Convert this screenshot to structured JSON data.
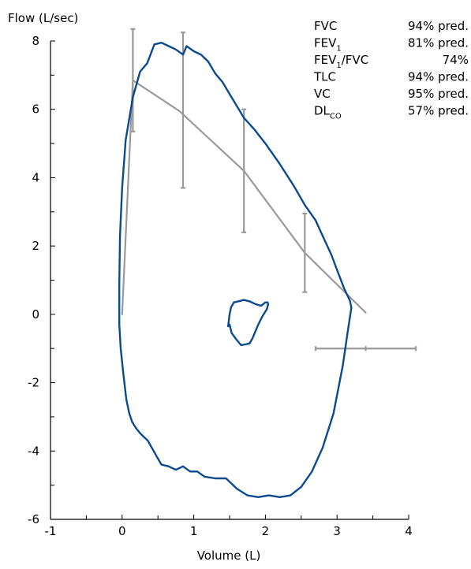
{
  "chart_data": {
    "type": "line",
    "xlabel": "Volume (L)",
    "ylabel": "Flow (L/sec)",
    "xlim": [
      -1,
      4
    ],
    "ylim": [
      -6,
      8
    ],
    "x_ticks": [
      -1,
      0,
      1,
      2,
      3,
      4
    ],
    "y_ticks": [
      -6,
      -4,
      -2,
      0,
      2,
      4,
      6,
      8
    ],
    "x_tick_labels": [
      "-1",
      "0",
      "1",
      "2",
      "3",
      "4"
    ],
    "y_tick_labels": [
      "-6",
      "-4",
      "-2",
      "0",
      "2",
      "4",
      "6",
      "8"
    ],
    "x_minor_step": 0.5,
    "y_minor_step": 1,
    "colors": {
      "patient": "#0b4a8f",
      "predicted": "#9a9a9a",
      "axis": "#000000"
    },
    "series": [
      {
        "role": "patient-loop",
        "x": [
          -0.04,
          -0.02,
          0.02,
          0.06,
          0.1,
          0.14,
          0.2,
          0.26,
          0.31,
          0.36,
          0.4,
          0.44,
          0.48,
          0.55,
          0.65,
          0.75,
          0.85,
          0.95,
          1.05,
          1.15,
          1.3,
          1.45,
          1.6,
          1.75,
          1.9,
          2.05,
          2.2,
          2.35,
          2.5,
          2.65,
          2.8,
          2.95,
          3.08,
          3.15,
          3.2,
          3.18,
          3.1,
          3.0,
          2.92,
          2.82,
          2.7,
          2.55,
          2.4,
          2.2,
          2.0,
          1.85,
          1.7,
          1.6,
          1.5,
          1.4,
          1.3,
          1.2,
          1.1,
          1.0,
          0.9,
          0.85,
          0.75,
          0.65,
          0.55,
          0.45,
          0.35,
          0.25,
          0.15,
          0.05,
          0.0,
          -0.03,
          -0.04,
          -0.04
        ],
        "y": [
          -0.3,
          -1.0,
          -1.8,
          -2.5,
          -2.9,
          -3.15,
          -3.35,
          -3.5,
          -3.6,
          -3.7,
          -3.85,
          -4.0,
          -4.15,
          -4.4,
          -4.45,
          -4.55,
          -4.45,
          -4.6,
          -4.6,
          -4.75,
          -4.8,
          -4.8,
          -5.1,
          -5.3,
          -5.35,
          -5.3,
          -5.35,
          -5.3,
          -5.05,
          -4.6,
          -3.9,
          -2.9,
          -1.5,
          -0.5,
          0.2,
          0.4,
          0.75,
          1.3,
          1.75,
          2.2,
          2.75,
          3.2,
          3.75,
          4.4,
          5.0,
          5.4,
          5.75,
          6.1,
          6.45,
          6.8,
          7.05,
          7.4,
          7.6,
          7.7,
          7.85,
          7.6,
          7.75,
          7.85,
          7.95,
          7.9,
          7.35,
          7.1,
          6.35,
          5.1,
          3.7,
          2.3,
          0.9,
          -0.3
        ]
      },
      {
        "role": "patient-tidal-loop",
        "x": [
          1.48,
          1.5,
          1.53,
          1.6,
          1.66,
          1.72,
          1.78,
          1.82,
          1.86,
          1.9,
          1.96,
          2.02,
          2.04,
          2.03,
          2.0,
          1.94,
          1.86,
          1.78,
          1.7,
          1.62,
          1.56,
          1.52,
          1.5,
          1.48
        ],
        "y": [
          -0.35,
          -0.3,
          -0.55,
          -0.75,
          -0.9,
          -0.88,
          -0.85,
          -0.7,
          -0.5,
          -0.3,
          -0.05,
          0.15,
          0.3,
          0.35,
          0.35,
          0.25,
          0.3,
          0.38,
          0.42,
          0.38,
          0.35,
          0.2,
          0.0,
          -0.35
        ]
      },
      {
        "role": "predicted-curve",
        "x": [
          0.0,
          0.15,
          0.8,
          1.7,
          2.55,
          3.4
        ],
        "y": [
          0.0,
          6.85,
          5.95,
          4.2,
          1.8,
          0.05
        ]
      }
    ],
    "error_bars": [
      {
        "x": 0.15,
        "y_low": 5.35,
        "y_high": 8.35
      },
      {
        "x": 0.85,
        "y_low": 3.7,
        "y_high": 8.25
      },
      {
        "x": 1.7,
        "y_low": 2.4,
        "y_high": 6.0
      },
      {
        "x": 2.55,
        "y_low": 0.65,
        "y_high": 2.95
      }
    ],
    "horizontal_error_bar": {
      "y": -1.0,
      "x_low": 2.7,
      "x_mid": 3.4,
      "x_high": 4.1
    },
    "annotations": [
      {
        "label": "FVC",
        "sub": "",
        "label_tail": "",
        "value": "94% pred."
      },
      {
        "label": "FEV",
        "sub": "1",
        "label_tail": "",
        "value": "81% pred."
      },
      {
        "label": "FEV",
        "sub": "1",
        "label_tail": "/FVC",
        "value": "74%"
      },
      {
        "label": "TLC",
        "sub": "",
        "label_tail": "",
        "value": "94% pred."
      },
      {
        "label": "VC",
        "sub": "",
        "label_tail": "",
        "value": "95% pred."
      },
      {
        "label": "DL",
        "sub": "CO",
        "label_tail": "",
        "value": "57% pred."
      }
    ]
  }
}
